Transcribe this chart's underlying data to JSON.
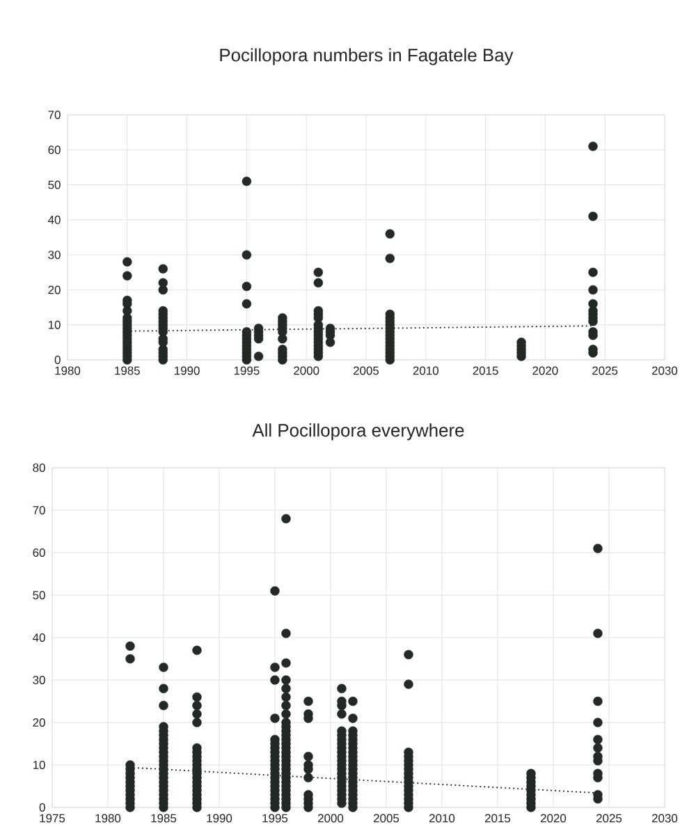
{
  "chart_data": [
    {
      "type": "scatter",
      "title": "Pocillopora numbers in Fagatele Bay",
      "xlim": [
        1980,
        2030
      ],
      "ylim": [
        0,
        70
      ],
      "xticks": [
        1980,
        1985,
        1990,
        1995,
        2000,
        2005,
        2010,
        2015,
        2020,
        2025,
        2030
      ],
      "yticks": [
        0,
        10,
        20,
        30,
        40,
        50,
        60,
        70
      ],
      "grid": true,
      "series": [
        {
          "color": "#232a26",
          "marker": "circle",
          "x": [
            1985,
            1985,
            1985,
            1985,
            1985,
            1985,
            1985,
            1985,
            1985,
            1985,
            1985,
            1985,
            1985,
            1985,
            1985,
            1985,
            1985,
            1985,
            1988,
            1988,
            1988,
            1988,
            1988,
            1988,
            1988,
            1988,
            1988,
            1988,
            1988,
            1988,
            1988,
            1988,
            1988,
            1988,
            1995,
            1995,
            1995,
            1995,
            1995,
            1995,
            1995,
            1995,
            1995,
            1995,
            1995,
            1995,
            1995,
            1996,
            1996,
            1996,
            1996,
            1996,
            1998,
            1998,
            1998,
            1998,
            1998,
            1998,
            1998,
            1998,
            1998,
            1998,
            2001,
            2001,
            2001,
            2001,
            2001,
            2001,
            2001,
            2001,
            2001,
            2001,
            2001,
            2001,
            2001,
            2001,
            2001,
            2002,
            2002,
            2002,
            2002,
            2007,
            2007,
            2007,
            2007,
            2007,
            2007,
            2007,
            2007,
            2007,
            2007,
            2007,
            2007,
            2007,
            2007,
            2007,
            2007,
            2018,
            2018,
            2018,
            2018,
            2018,
            2024,
            2024,
            2024,
            2024,
            2024,
            2024,
            2024,
            2024,
            2024,
            2024,
            2024,
            2024,
            2024
          ],
          "values": [
            0,
            1,
            2,
            3,
            4,
            5,
            6,
            7,
            8,
            9,
            10,
            11,
            12,
            14,
            16,
            17,
            24,
            28,
            0,
            1,
            2,
            3,
            5,
            6,
            8,
            9,
            10,
            11,
            12,
            13,
            14,
            20,
            22,
            26,
            0,
            1,
            2,
            3,
            4,
            5,
            6,
            7,
            8,
            16,
            21,
            30,
            51,
            1,
            6,
            7,
            8,
            9,
            0,
            1,
            2,
            3,
            6,
            8,
            9,
            10,
            11,
            12,
            1,
            2,
            3,
            4,
            5,
            6,
            7,
            8,
            9,
            10,
            12,
            13,
            14,
            22,
            25,
            5,
            7,
            8,
            9,
            0,
            1,
            2,
            3,
            4,
            5,
            6,
            7,
            8,
            9,
            10,
            11,
            12,
            13,
            29,
            36,
            1,
            2,
            3,
            4,
            5,
            2,
            3,
            7,
            8,
            11,
            12,
            13,
            14,
            16,
            20,
            25,
            41,
            61
          ]
        },
        {
          "type": "line",
          "color": "#232a26",
          "line_style": "dotted",
          "marker": "none",
          "x": [
            1985,
            2024
          ],
          "values": [
            8.2,
            9.7
          ]
        }
      ]
    },
    {
      "type": "scatter",
      "title": "All Pocillopora everywhere",
      "xlim": [
        1975,
        2030
      ],
      "ylim": [
        0,
        80
      ],
      "xticks": [
        1975,
        1980,
        1985,
        1990,
        1995,
        2000,
        2005,
        2010,
        2015,
        2020,
        2025,
        2030
      ],
      "yticks": [
        0,
        10,
        20,
        30,
        40,
        50,
        60,
        70,
        80
      ],
      "grid": true,
      "series": [
        {
          "color": "#232a26",
          "marker": "circle",
          "x": [
            1982,
            1982,
            1982,
            1982,
            1982,
            1982,
            1982,
            1982,
            1982,
            1982,
            1982,
            1982,
            1982,
            1985,
            1985,
            1985,
            1985,
            1985,
            1985,
            1985,
            1985,
            1985,
            1985,
            1985,
            1985,
            1985,
            1985,
            1985,
            1985,
            1985,
            1985,
            1985,
            1985,
            1985,
            1985,
            1985,
            1988,
            1988,
            1988,
            1988,
            1988,
            1988,
            1988,
            1988,
            1988,
            1988,
            1988,
            1988,
            1988,
            1988,
            1988,
            1988,
            1988,
            1988,
            1988,
            1988,
            1995,
            1995,
            1995,
            1995,
            1995,
            1995,
            1995,
            1995,
            1995,
            1995,
            1995,
            1995,
            1995,
            1995,
            1995,
            1995,
            1995,
            1995,
            1995,
            1995,
            1995,
            1996,
            1996,
            1996,
            1996,
            1996,
            1996,
            1996,
            1996,
            1996,
            1996,
            1996,
            1996,
            1996,
            1996,
            1996,
            1996,
            1996,
            1996,
            1996,
            1996,
            1996,
            1996,
            1996,
            1996,
            1996,
            1996,
            1996,
            1996,
            1996,
            1998,
            1998,
            1998,
            1998,
            1998,
            1998,
            1998,
            1998,
            1998,
            1998,
            1998,
            2001,
            2001,
            2001,
            2001,
            2001,
            2001,
            2001,
            2001,
            2001,
            2001,
            2001,
            2001,
            2001,
            2001,
            2001,
            2001,
            2001,
            2001,
            2001,
            2001,
            2001,
            2001,
            2002,
            2002,
            2002,
            2002,
            2002,
            2002,
            2002,
            2002,
            2002,
            2002,
            2002,
            2002,
            2002,
            2002,
            2002,
            2002,
            2002,
            2002,
            2002,
            2002,
            2002,
            2007,
            2007,
            2007,
            2007,
            2007,
            2007,
            2007,
            2007,
            2007,
            2007,
            2007,
            2007,
            2007,
            2007,
            2007,
            2007,
            2018,
            2018,
            2018,
            2018,
            2018,
            2018,
            2018,
            2018,
            2018,
            2024,
            2024,
            2024,
            2024,
            2024,
            2024,
            2024,
            2024,
            2024,
            2024,
            2024,
            2024
          ],
          "values": [
            0,
            1,
            2,
            3,
            4,
            5,
            6,
            7,
            8,
            9,
            10,
            35,
            38,
            0,
            1,
            2,
            3,
            4,
            5,
            6,
            7,
            8,
            9,
            10,
            11,
            12,
            13,
            14,
            15,
            16,
            17,
            18,
            19,
            24,
            28,
            33,
            0,
            1,
            2,
            3,
            4,
            5,
            6,
            7,
            8,
            9,
            10,
            11,
            12,
            13,
            14,
            20,
            22,
            24,
            26,
            37,
            0,
            1,
            2,
            3,
            4,
            5,
            6,
            7,
            8,
            9,
            10,
            11,
            12,
            13,
            14,
            15,
            16,
            21,
            30,
            33,
            51,
            0,
            1,
            2,
            3,
            4,
            5,
            6,
            7,
            8,
            9,
            10,
            11,
            12,
            13,
            14,
            15,
            16,
            17,
            18,
            19,
            20,
            22,
            24,
            26,
            28,
            30,
            34,
            41,
            68,
            0,
            1,
            2,
            3,
            7,
            9,
            10,
            12,
            21,
            22,
            25,
            1,
            2,
            3,
            4,
            5,
            6,
            7,
            8,
            9,
            10,
            11,
            12,
            13,
            14,
            15,
            16,
            17,
            18,
            22,
            24,
            25,
            28,
            0,
            1,
            2,
            3,
            4,
            5,
            6,
            7,
            8,
            9,
            10,
            11,
            12,
            13,
            14,
            15,
            16,
            17,
            18,
            21,
            25,
            0,
            1,
            2,
            3,
            4,
            5,
            6,
            7,
            8,
            9,
            10,
            11,
            12,
            13,
            29,
            36,
            0,
            1,
            2,
            3,
            4,
            5,
            6,
            7,
            8,
            2,
            3,
            7,
            8,
            11,
            12,
            14,
            16,
            20,
            25,
            41,
            61
          ]
        },
        {
          "type": "line",
          "color": "#232a26",
          "line_style": "dotted",
          "marker": "none",
          "x": [
            1982,
            2024
          ],
          "values": [
            9.4,
            3.4
          ]
        }
      ]
    }
  ]
}
